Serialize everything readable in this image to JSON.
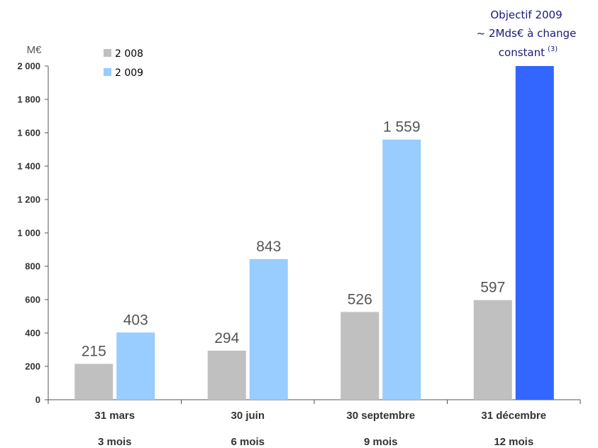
{
  "chart_data": {
    "type": "bar",
    "unit_label": "M€",
    "ylim": [
      0,
      2000
    ],
    "y_ticks": [
      0,
      200,
      400,
      600,
      800,
      1000,
      1200,
      1400,
      1600,
      1800,
      2000
    ],
    "y_tick_labels": [
      "0",
      "200",
      "400",
      "600",
      "800",
      "1 000",
      "1 200",
      "1 400",
      "1 600",
      "1 800",
      "2 000"
    ],
    "categories": [
      "31 mars",
      "30 juin",
      "30 septembre",
      "31 décembre"
    ],
    "sub_categories": [
      "3 mois",
      "6 mois",
      "9 mois",
      "12 mois"
    ],
    "series": [
      {
        "name": "2 008",
        "color": "#c0c0c0",
        "values": [
          215,
          294,
          526,
          597
        ],
        "labels": [
          "215",
          "294",
          "526",
          "597"
        ]
      },
      {
        "name": "2 009",
        "color": "#99ccff",
        "values": [
          403,
          843,
          1559,
          2000
        ],
        "labels": [
          "403",
          "843",
          "1 559",
          ""
        ]
      }
    ],
    "highlight": {
      "series_index": 1,
      "category_index": 3,
      "color": "#3366ff"
    },
    "annotation": {
      "lines": [
        "Objectif 2009",
        "~ 2Mds€ à change",
        "constant"
      ],
      "superscript": "(3)"
    },
    "grid": false,
    "legend_position": "top-left"
  }
}
